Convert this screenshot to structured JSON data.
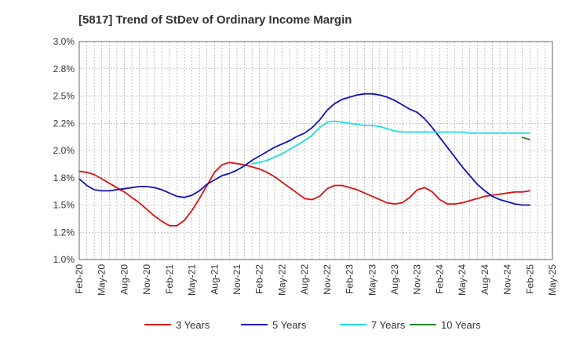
{
  "chart_data": {
    "type": "line",
    "title": "[5817]  Trend of StDev of Ordinary Income Margin",
    "xlabel": "",
    "ylabel": "",
    "x_tick_labels": [
      "Feb-20",
      "May-20",
      "Aug-20",
      "Nov-20",
      "Feb-21",
      "May-21",
      "Aug-21",
      "Nov-21",
      "Feb-22",
      "May-22",
      "Aug-22",
      "Nov-22",
      "Feb-23",
      "May-23",
      "Aug-23",
      "Nov-23",
      "Feb-24",
      "May-24",
      "Aug-24",
      "Nov-24",
      "Feb-25",
      "May-25"
    ],
    "y_tick_labels": [
      "3.0%",
      "2.8%",
      "2.5%",
      "2.2%",
      "2.0%",
      "1.8%",
      "1.5%",
      "1.2%",
      "1.0%"
    ],
    "ylim": [
      1.0,
      3.0
    ],
    "grid": true,
    "legend_position": "bottom",
    "series": [
      {
        "name": "3 Years",
        "color": "#dd1111",
        "x": [
          "2020-02",
          "2020-03",
          "2020-04",
          "2020-05",
          "2020-06",
          "2020-07",
          "2020-08",
          "2020-09",
          "2020-10",
          "2020-11",
          "2020-12",
          "2021-01",
          "2021-02",
          "2021-03",
          "2021-04",
          "2021-05",
          "2021-06",
          "2021-07",
          "2021-08",
          "2021-09",
          "2021-10",
          "2021-11",
          "2021-12",
          "2022-01",
          "2022-02",
          "2022-03",
          "2022-04",
          "2022-05",
          "2022-06",
          "2022-07",
          "2022-08",
          "2022-09",
          "2022-10",
          "2022-11",
          "2022-12",
          "2023-01",
          "2023-02",
          "2023-03",
          "2023-04",
          "2023-05",
          "2023-06",
          "2023-07",
          "2023-08",
          "2023-09",
          "2023-10",
          "2023-11",
          "2023-12",
          "2024-01",
          "2024-02",
          "2024-03",
          "2024-04",
          "2024-05",
          "2024-06",
          "2024-07",
          "2024-08",
          "2024-09",
          "2024-10",
          "2024-11",
          "2024-12",
          "2025-01",
          "2025-02"
        ],
        "values": [
          1.81,
          1.8,
          1.78,
          1.74,
          1.7,
          1.66,
          1.62,
          1.57,
          1.52,
          1.46,
          1.4,
          1.35,
          1.31,
          1.31,
          1.36,
          1.45,
          1.56,
          1.68,
          1.8,
          1.87,
          1.89,
          1.88,
          1.87,
          1.85,
          1.83,
          1.8,
          1.76,
          1.71,
          1.66,
          1.61,
          1.56,
          1.55,
          1.58,
          1.65,
          1.68,
          1.68,
          1.66,
          1.64,
          1.61,
          1.58,
          1.55,
          1.52,
          1.51,
          1.52,
          1.57,
          1.64,
          1.66,
          1.62,
          1.55,
          1.51,
          1.51,
          1.52,
          1.54,
          1.56,
          1.58,
          1.59,
          1.6,
          1.61,
          1.62,
          1.62,
          1.63
        ]
      },
      {
        "name": "5 Years",
        "color": "#1111bb",
        "x": [
          "2020-02",
          "2020-03",
          "2020-04",
          "2020-05",
          "2020-06",
          "2020-07",
          "2020-08",
          "2020-09",
          "2020-10",
          "2020-11",
          "2020-12",
          "2021-01",
          "2021-02",
          "2021-03",
          "2021-04",
          "2021-05",
          "2021-06",
          "2021-07",
          "2021-08",
          "2021-09",
          "2021-10",
          "2021-11",
          "2021-12",
          "2022-01",
          "2022-02",
          "2022-03",
          "2022-04",
          "2022-05",
          "2022-06",
          "2022-07",
          "2022-08",
          "2022-09",
          "2022-10",
          "2022-11",
          "2022-12",
          "2023-01",
          "2023-02",
          "2023-03",
          "2023-04",
          "2023-05",
          "2023-06",
          "2023-07",
          "2023-08",
          "2023-09",
          "2023-10",
          "2023-11",
          "2023-12",
          "2024-01",
          "2024-02",
          "2024-03",
          "2024-04",
          "2024-05",
          "2024-06",
          "2024-07",
          "2024-08",
          "2024-09",
          "2024-10",
          "2024-11",
          "2024-12",
          "2025-01",
          "2025-02"
        ],
        "values": [
          1.74,
          1.68,
          1.64,
          1.63,
          1.63,
          1.64,
          1.65,
          1.66,
          1.67,
          1.67,
          1.66,
          1.64,
          1.61,
          1.58,
          1.57,
          1.59,
          1.63,
          1.69,
          1.73,
          1.77,
          1.79,
          1.82,
          1.86,
          1.91,
          1.95,
          1.99,
          2.03,
          2.06,
          2.09,
          2.13,
          2.16,
          2.21,
          2.28,
          2.37,
          2.43,
          2.47,
          2.49,
          2.51,
          2.52,
          2.52,
          2.51,
          2.49,
          2.46,
          2.42,
          2.38,
          2.35,
          2.29,
          2.21,
          2.12,
          2.03,
          1.94,
          1.85,
          1.77,
          1.69,
          1.63,
          1.58,
          1.55,
          1.53,
          1.51,
          1.5,
          1.5
        ]
      },
      {
        "name": "7 Years",
        "color": "#22dddd",
        "x": [
          "2022-01",
          "2022-02",
          "2022-03",
          "2022-04",
          "2022-05",
          "2022-06",
          "2022-07",
          "2022-08",
          "2022-09",
          "2022-10",
          "2022-11",
          "2022-12",
          "2023-01",
          "2023-02",
          "2023-03",
          "2023-04",
          "2023-05",
          "2023-06",
          "2023-07",
          "2023-08",
          "2023-09",
          "2023-10",
          "2023-11",
          "2023-12",
          "2024-01",
          "2024-02",
          "2024-03",
          "2024-04",
          "2024-05",
          "2024-06",
          "2024-07",
          "2024-08",
          "2024-09",
          "2024-10",
          "2024-11",
          "2024-12",
          "2025-01",
          "2025-02"
        ],
        "values": [
          1.88,
          1.89,
          1.91,
          1.94,
          1.97,
          2.01,
          2.05,
          2.09,
          2.14,
          2.21,
          2.26,
          2.27,
          2.26,
          2.25,
          2.24,
          2.23,
          2.23,
          2.22,
          2.2,
          2.18,
          2.17,
          2.17,
          2.17,
          2.17,
          2.17,
          2.17,
          2.17,
          2.17,
          2.17,
          2.16,
          2.16,
          2.16,
          2.16,
          2.16,
          2.16,
          2.16,
          2.16,
          2.16
        ]
      },
      {
        "name": "10 Years",
        "color": "#228822",
        "x": [
          "2025-01",
          "2025-02"
        ],
        "values": [
          2.12,
          2.1
        ]
      }
    ]
  }
}
